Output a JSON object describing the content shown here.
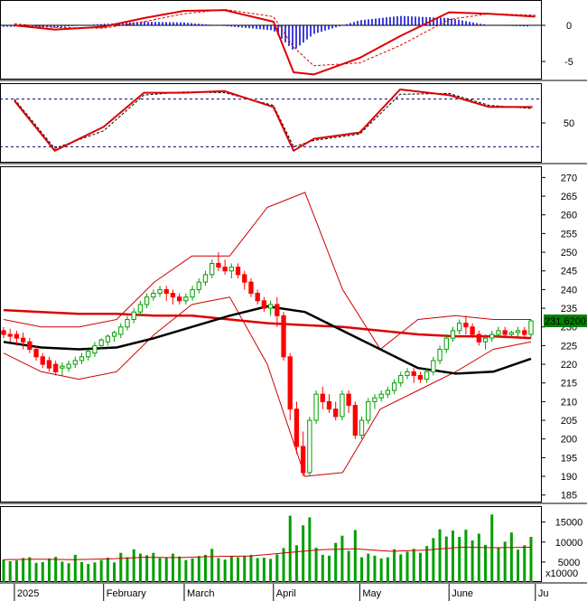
{
  "colors": {
    "up": "#00a000",
    "down": "#ff0000",
    "sma": "#000000",
    "ma": "#dd0000",
    "band": "#cc0000",
    "macd_hist": "#0000cc",
    "frame": "#000000",
    "grid_dashed": "#000080",
    "price_tag_bg": "#008000",
    "price_tag_text": "#ffffff"
  },
  "chart_data": [
    {
      "type": "line",
      "panel": "macd",
      "y_ticks": [
        "0",
        "-5"
      ],
      "ylim": [
        -7.5,
        3.5
      ],
      "x": [
        "2025-01-01",
        "2025-01-15",
        "2025-02-01",
        "2025-02-15",
        "2025-03-01",
        "2025-03-15",
        "2025-04-01",
        "2025-04-08",
        "2025-04-15",
        "2025-05-01",
        "2025-05-15",
        "2025-06-01",
        "2025-06-15",
        "2025-07-01"
      ],
      "series": [
        {
          "role": "macd",
          "values": [
            0.0,
            -0.6,
            -0.2,
            1.0,
            2.0,
            2.1,
            0.5,
            -6.5,
            -6.8,
            -4.5,
            -1.5,
            1.8,
            1.6,
            1.2
          ]
        },
        {
          "role": "signal",
          "values": [
            0.2,
            -0.3,
            -0.4,
            0.5,
            1.6,
            2.2,
            1.2,
            -3.0,
            -5.6,
            -5.2,
            -2.8,
            0.8,
            1.6,
            1.4
          ]
        },
        {
          "role": "histogram",
          "values": [
            -0.2,
            -0.3,
            0.2,
            0.5,
            0.4,
            -0.1,
            -0.7,
            -3.5,
            -1.2,
            0.7,
            1.3,
            1.0,
            0.0,
            -0.2
          ]
        }
      ]
    },
    {
      "type": "line",
      "panel": "stochastic",
      "y_ticks": [
        "50"
      ],
      "ylim": [
        0,
        100
      ],
      "reference_levels": [
        80,
        20
      ],
      "x": [
        "2025-01-01",
        "2025-01-15",
        "2025-02-01",
        "2025-02-15",
        "2025-03-01",
        "2025-03-15",
        "2025-04-01",
        "2025-04-08",
        "2025-04-15",
        "2025-05-01",
        "2025-05-15",
        "2025-06-01",
        "2025-06-15",
        "2025-06-30"
      ],
      "series": [
        {
          "role": "k",
          "values": [
            78,
            15,
            45,
            88,
            88,
            90,
            70,
            15,
            30,
            38,
            92,
            85,
            70,
            70
          ]
        },
        {
          "role": "d",
          "values": [
            80,
            18,
            40,
            85,
            89,
            88,
            72,
            20,
            28,
            36,
            86,
            87,
            72,
            68
          ]
        }
      ]
    },
    {
      "type": "candlestick",
      "panel": "price",
      "y_ticks": [
        "270",
        "265",
        "260",
        "255",
        "250",
        "245",
        "240",
        "235",
        "230",
        "225",
        "220",
        "215",
        "210",
        "205",
        "200",
        "195",
        "190",
        "185"
      ],
      "ylim": [
        183,
        273
      ],
      "x_tick_labels": [
        "2025",
        "February",
        "March",
        "April",
        "May",
        "June",
        "Ju"
      ],
      "last_price_label": "231.6200",
      "candles": [
        [
          229,
          230,
          228,
          227
        ],
        [
          228,
          229.5,
          227.5,
          226
        ],
        [
          228,
          229,
          227,
          225
        ],
        [
          227,
          228.5,
          226,
          224
        ],
        [
          226,
          227,
          224,
          223
        ],
        [
          224,
          225,
          222,
          221
        ],
        [
          222,
          223,
          220,
          219
        ],
        [
          221,
          222,
          219,
          218
        ],
        [
          220,
          221,
          218,
          217
        ],
        [
          219,
          220.5,
          219.5,
          217
        ],
        [
          219,
          221,
          220,
          218
        ],
        [
          220,
          222,
          221,
          219
        ],
        [
          221,
          223,
          222,
          220
        ],
        [
          222,
          224,
          223.5,
          221
        ],
        [
          223,
          226,
          225,
          222
        ],
        [
          225,
          227,
          226.5,
          224
        ],
        [
          226,
          228,
          227.5,
          225
        ],
        [
          227.5,
          229,
          228.5,
          226
        ],
        [
          228,
          231,
          230,
          227
        ],
        [
          230,
          233,
          232,
          229
        ],
        [
          232,
          235,
          234,
          231
        ],
        [
          234,
          237,
          236,
          233
        ],
        [
          236,
          239,
          238,
          235
        ],
        [
          238,
          240,
          239,
          237
        ],
        [
          239,
          241,
          240,
          238
        ],
        [
          240,
          241,
          239,
          237
        ],
        [
          239,
          240,
          238,
          236
        ],
        [
          238,
          239,
          237,
          236
        ],
        [
          237,
          239,
          238,
          236
        ],
        [
          238,
          241,
          240,
          237
        ],
        [
          240,
          243,
          242,
          239
        ],
        [
          242,
          245,
          244,
          241
        ],
        [
          244,
          248,
          247,
          243
        ],
        [
          247,
          250,
          246,
          245
        ],
        [
          246,
          248,
          245,
          244
        ],
        [
          245,
          247,
          246,
          243
        ],
        [
          246,
          247,
          244,
          243
        ],
        [
          244,
          245,
          242,
          240
        ],
        [
          242,
          243,
          239,
          238
        ],
        [
          239,
          240,
          237,
          236
        ],
        [
          237,
          238,
          235,
          234
        ],
        [
          235,
          237,
          236,
          233
        ],
        [
          236,
          238,
          233,
          230
        ],
        [
          233,
          234,
          222,
          221
        ],
        [
          222,
          223,
          208,
          205
        ],
        [
          208,
          210,
          198,
          196
        ],
        [
          198,
          202,
          191,
          190
        ],
        [
          191,
          206,
          205,
          190
        ],
        [
          205,
          213,
          212,
          204
        ],
        [
          212,
          214,
          210,
          208
        ],
        [
          210,
          212,
          208,
          207
        ],
        [
          208,
          210,
          206,
          205
        ],
        [
          206,
          213,
          212,
          205
        ],
        [
          212,
          213,
          209,
          207
        ],
        [
          209,
          210,
          201,
          200
        ],
        [
          201,
          206,
          205,
          200
        ],
        [
          205,
          211,
          210,
          204
        ],
        [
          210,
          212,
          211,
          208
        ],
        [
          211,
          213,
          212,
          210
        ],
        [
          212,
          214,
          213,
          211
        ],
        [
          213,
          216,
          215,
          212
        ],
        [
          215,
          218,
          217,
          214
        ],
        [
          217,
          219,
          218,
          216
        ],
        [
          218,
          219,
          217,
          215
        ],
        [
          217,
          218,
          216,
          215
        ],
        [
          216,
          219,
          218,
          215
        ],
        [
          218,
          222,
          221,
          217
        ],
        [
          221,
          225,
          224,
          220
        ],
        [
          224,
          228,
          227,
          223
        ],
        [
          227,
          230,
          229,
          226
        ],
        [
          229,
          232,
          231,
          228
        ],
        [
          231,
          233,
          230,
          228
        ],
        [
          230,
          231,
          228,
          227
        ],
        [
          228,
          229,
          226,
          225
        ],
        [
          226,
          228,
          227,
          224
        ],
        [
          227,
          229,
          228,
          226
        ],
        [
          228,
          230,
          229,
          227
        ],
        [
          229,
          230,
          228,
          227
        ],
        [
          228,
          229,
          228.5,
          227
        ],
        [
          228.5,
          230,
          229,
          227.5
        ],
        [
          229,
          230,
          228,
          227
        ],
        [
          228,
          232,
          231.62,
          227
        ]
      ],
      "series": [
        {
          "role": "moving_average_long",
          "values": [
            234.5,
            234,
            233.5,
            233.5,
            233,
            233,
            232,
            231,
            230.5,
            230,
            229,
            228,
            227.5,
            227.5,
            227
          ]
        },
        {
          "role": "moving_average_short",
          "values": [
            226,
            224.5,
            224,
            224.5,
            227,
            230,
            233,
            235.5,
            234,
            229,
            224,
            219,
            217.5,
            218,
            221.5
          ]
        },
        {
          "role": "band_upper",
          "values": [
            232,
            230,
            230,
            232,
            242,
            249,
            249,
            262,
            266,
            240,
            224,
            232,
            233,
            232,
            232
          ]
        },
        {
          "role": "band_lower",
          "values": [
            223,
            218,
            216,
            218,
            228,
            236,
            238,
            220,
            190,
            191,
            208,
            213,
            218,
            224,
            226
          ]
        }
      ]
    },
    {
      "type": "bar",
      "panel": "volume",
      "y_ticks": [
        "15000",
        "10000",
        "5000"
      ],
      "unit_label": "x10000",
      "ylim": [
        0,
        19000
      ],
      "values": [
        5600,
        5200,
        5400,
        6000,
        6200,
        4800,
        5000,
        5900,
        6300,
        5100,
        4700,
        6800,
        5000,
        4500,
        4900,
        5500,
        6100,
        4900,
        7300,
        6200,
        8200,
        7100,
        6700,
        7300,
        6000,
        6200,
        7100,
        6400,
        5500,
        5900,
        6500,
        6800,
        8300,
        6000,
        5600,
        6400,
        6200,
        6600,
        6800,
        6000,
        6100,
        5800,
        6900,
        8500,
        16600,
        9200,
        14200,
        16200,
        8600,
        6800,
        6600,
        9800,
        11600,
        7800,
        13000,
        6200,
        7100,
        6600,
        5900,
        6200,
        8200,
        6900,
        7600,
        8300,
        7300,
        9000,
        11000,
        13200,
        11400,
        12900,
        11300,
        13100,
        10400,
        12100,
        9300,
        16900,
        8600,
        10100,
        12400,
        8100,
        9200,
        11300
      ],
      "series": [
        {
          "role": "volume_average",
          "values": [
            5600,
            5700,
            5600,
            5800,
            6200,
            6100,
            6400,
            6500,
            7300,
            8100,
            8300,
            7700,
            8000,
            8700,
            8600,
            8700
          ]
        }
      ]
    }
  ]
}
